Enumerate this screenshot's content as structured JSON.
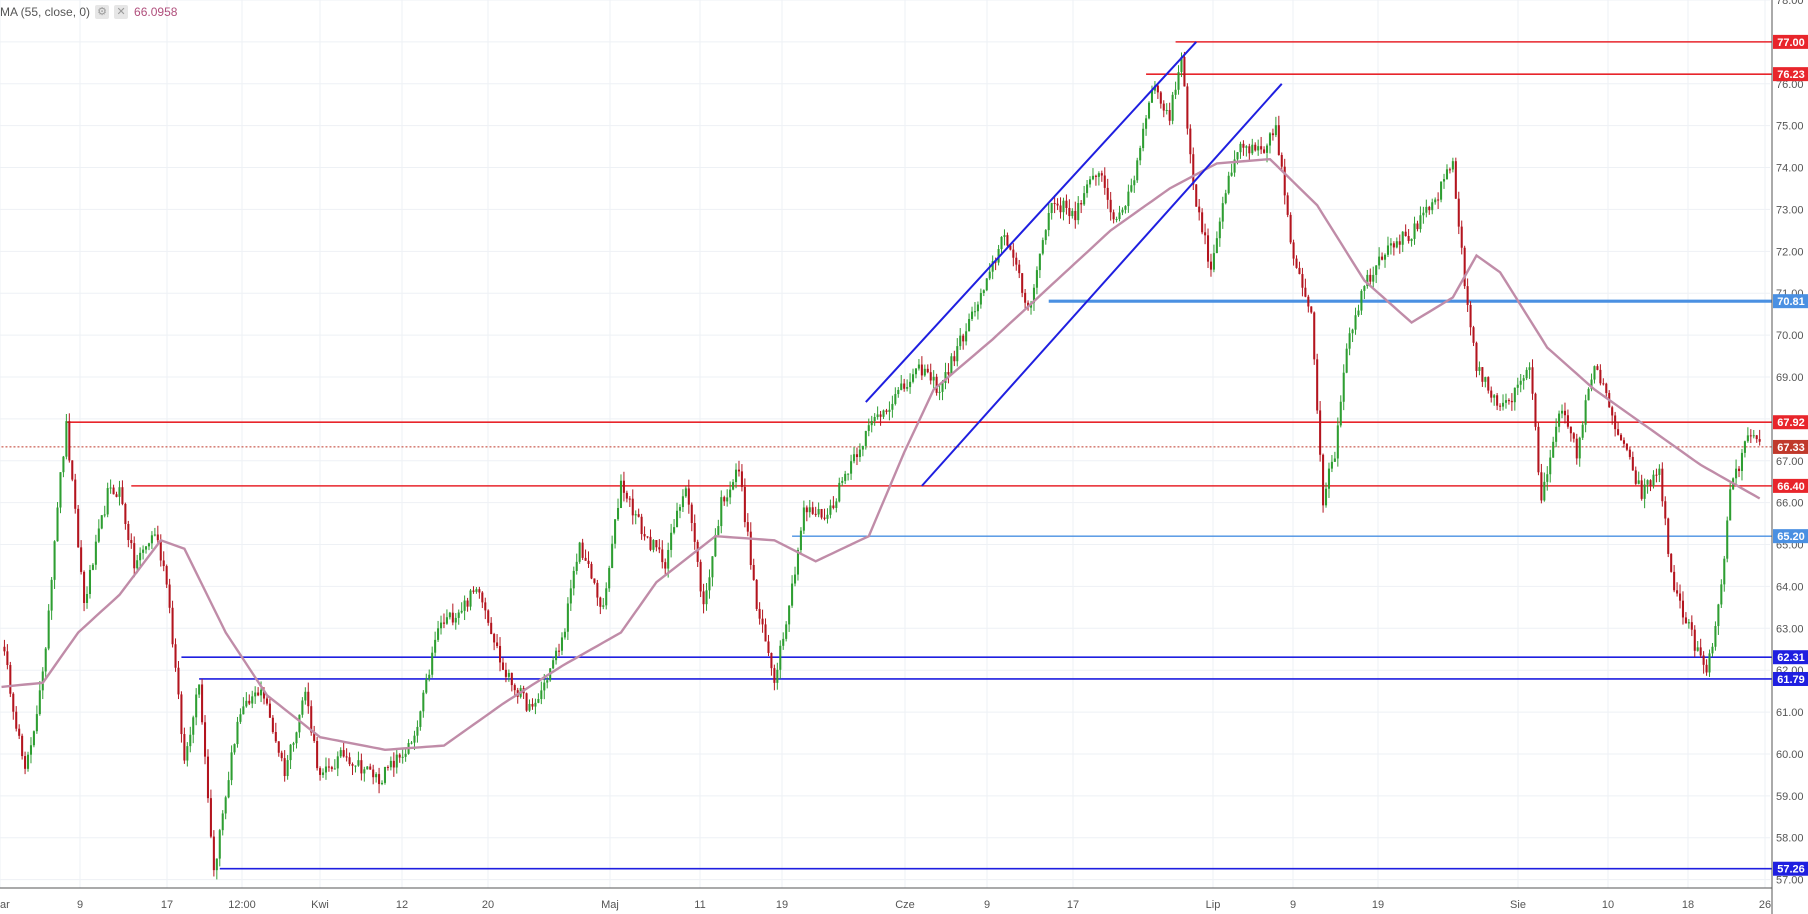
{
  "legend": {
    "label": "MA (55, close, 0)",
    "settings_icon": "gear-icon",
    "close_icon": "close-icon",
    "value": "66.0958"
  },
  "colors": {
    "up": "#2e9e32",
    "down": "#b3141e",
    "ma": "#c08ca8",
    "red_level": "#e8252b",
    "blue_level": "#1f1fe0",
    "light_blue_level": "#4a90e2",
    "price_line": "#c0392b",
    "grid": "#eef1f5",
    "axis_text": "#555555"
  },
  "chart_data": {
    "type": "candlestick",
    "title": "",
    "ylim": [
      56.8,
      78.0
    ],
    "y_ticks": [
      57,
      58,
      59,
      60,
      61,
      62,
      63,
      64,
      65,
      66,
      67,
      68,
      69,
      70,
      71,
      72,
      73,
      74,
      75,
      76,
      77,
      78
    ],
    "y_tick_labels": [
      "57.00",
      "58.00",
      "59.00",
      "60.00",
      "61.00",
      "62.00",
      "63.00",
      "64.00",
      "65.00",
      "66.00",
      "67.00",
      "68.00",
      "69.00",
      "70.00",
      "71.00",
      "72.00",
      "73.00",
      "74.00",
      "75.00",
      "76.00",
      "77.00",
      "78.00"
    ],
    "x_tick_labels": [
      "ar",
      "9",
      "17",
      "12:00",
      "Kwi",
      "12",
      "20",
      "Maj",
      "11",
      "19",
      "Cze",
      "9",
      "17",
      "Lip",
      "9",
      "19",
      "Sie",
      "10",
      "18",
      "26"
    ],
    "series": [
      {
        "name": "price",
        "anchors": [
          [
            0,
            62.7
          ],
          [
            3,
            61.6
          ],
          [
            8,
            59.5
          ],
          [
            14,
            61.8
          ],
          [
            19,
            66.0
          ],
          [
            22,
            67.8
          ],
          [
            28,
            63.6
          ],
          [
            36,
            66.2
          ],
          [
            40,
            66.3
          ],
          [
            45,
            64.5
          ],
          [
            52,
            65.3
          ],
          [
            56,
            64.2
          ],
          [
            62,
            59.8
          ],
          [
            67,
            61.8
          ],
          [
            72,
            57.2
          ],
          [
            80,
            60.8
          ],
          [
            88,
            61.6
          ],
          [
            96,
            59.6
          ],
          [
            103,
            61.5
          ],
          [
            108,
            59.4
          ],
          [
            116,
            60.0
          ],
          [
            128,
            59.4
          ],
          [
            140,
            60.3
          ],
          [
            148,
            63.0
          ],
          [
            156,
            63.5
          ],
          [
            162,
            64.0
          ],
          [
            170,
            62.0
          ],
          [
            180,
            61.0
          ],
          [
            190,
            62.7
          ],
          [
            196,
            65.0
          ],
          [
            204,
            63.4
          ],
          [
            210,
            66.5
          ],
          [
            218,
            65.2
          ],
          [
            225,
            64.6
          ],
          [
            232,
            66.5
          ],
          [
            238,
            63.5
          ],
          [
            244,
            66.0
          ],
          [
            250,
            66.8
          ],
          [
            256,
            63.5
          ],
          [
            262,
            61.8
          ],
          [
            268,
            64.0
          ],
          [
            272,
            65.8
          ],
          [
            280,
            65.7
          ],
          [
            288,
            67.0
          ],
          [
            296,
            68.0
          ],
          [
            304,
            68.6
          ],
          [
            312,
            69.2
          ],
          [
            318,
            68.7
          ],
          [
            326,
            70.0
          ],
          [
            334,
            71.2
          ],
          [
            340,
            72.5
          ],
          [
            348,
            70.6
          ],
          [
            356,
            73.2
          ],
          [
            364,
            72.9
          ],
          [
            372,
            74.0
          ],
          [
            378,
            72.6
          ],
          [
            384,
            73.8
          ],
          [
            390,
            76.0
          ],
          [
            396,
            75.2
          ],
          [
            400,
            76.7
          ],
          [
            404,
            73.5
          ],
          [
            410,
            71.6
          ],
          [
            414,
            73.2
          ],
          [
            420,
            74.5
          ],
          [
            428,
            74.3
          ],
          [
            432,
            75.0
          ],
          [
            438,
            71.7
          ],
          [
            444,
            70.6
          ],
          [
            448,
            66.1
          ],
          [
            452,
            67.2
          ],
          [
            456,
            69.8
          ],
          [
            462,
            71.2
          ],
          [
            470,
            72.2
          ],
          [
            478,
            72.4
          ],
          [
            486,
            73.2
          ],
          [
            492,
            74.1
          ],
          [
            496,
            71.2
          ],
          [
            500,
            69.3
          ],
          [
            506,
            68.4
          ],
          [
            512,
            68.5
          ],
          [
            518,
            69.3
          ],
          [
            522,
            66.0
          ],
          [
            528,
            68.3
          ],
          [
            534,
            67.2
          ],
          [
            540,
            69.4
          ],
          [
            546,
            68.0
          ],
          [
            550,
            67.3
          ],
          [
            556,
            66.2
          ],
          [
            562,
            66.8
          ],
          [
            566,
            64.2
          ],
          [
            572,
            63.0
          ],
          [
            578,
            61.9
          ],
          [
            582,
            63.4
          ],
          [
            586,
            66.2
          ],
          [
            592,
            67.6
          ],
          [
            596,
            67.3
          ]
        ]
      },
      {
        "name": "MA (55, close, 0)",
        "points": [
          [
            0,
            61.6
          ],
          [
            14,
            61.7
          ],
          [
            26,
            62.9
          ],
          [
            40,
            63.8
          ],
          [
            54,
            65.1
          ],
          [
            62,
            64.9
          ],
          [
            76,
            62.9
          ],
          [
            90,
            61.4
          ],
          [
            108,
            60.4
          ],
          [
            130,
            60.1
          ],
          [
            150,
            60.2
          ],
          [
            170,
            61.2
          ],
          [
            190,
            62.1
          ],
          [
            210,
            62.9
          ],
          [
            222,
            64.1
          ],
          [
            242,
            65.2
          ],
          [
            262,
            65.1
          ],
          [
            276,
            64.6
          ],
          [
            294,
            65.2
          ],
          [
            306,
            67.2
          ],
          [
            316,
            68.7
          ],
          [
            336,
            69.9
          ],
          [
            356,
            71.2
          ],
          [
            376,
            72.5
          ],
          [
            396,
            73.5
          ],
          [
            412,
            74.1
          ],
          [
            430,
            74.2
          ],
          [
            446,
            73.1
          ],
          [
            462,
            71.3
          ],
          [
            478,
            70.3
          ],
          [
            492,
            70.9
          ],
          [
            500,
            71.9
          ],
          [
            508,
            71.5
          ],
          [
            524,
            69.7
          ],
          [
            540,
            68.7
          ],
          [
            556,
            67.9
          ],
          [
            576,
            66.9
          ],
          [
            596,
            66.1
          ]
        ]
      }
    ],
    "levels": [
      {
        "value": 77.0,
        "label": "77.00",
        "color": "red",
        "from": 398
      },
      {
        "value": 76.23,
        "label": "76.23",
        "color": "red",
        "from": 388
      },
      {
        "value": 70.81,
        "label": "70.81",
        "color": "blue_light_thick",
        "from": 355
      },
      {
        "value": 67.92,
        "label": "67.92",
        "color": "red",
        "from": 22
      },
      {
        "value": 67.33,
        "label": "67.33",
        "color": "price",
        "from": 0
      },
      {
        "value": 66.4,
        "label": "66.40",
        "color": "red",
        "from": 44
      },
      {
        "value": 65.2,
        "label": "65.20",
        "color": "blue_light",
        "from": 268
      },
      {
        "value": 62.31,
        "label": "62.31",
        "color": "blue",
        "from": 61
      },
      {
        "value": 61.79,
        "label": "61.79",
        "color": "blue",
        "from": 67
      },
      {
        "value": 57.26,
        "label": "57.26",
        "color": "blue",
        "from": 74
      }
    ],
    "trend_channel": [
      {
        "from": [
          293,
          68.4
        ],
        "to": [
          405,
          77.0
        ]
      },
      {
        "from": [
          312,
          66.4
        ],
        "to": [
          434,
          76.0
        ]
      }
    ]
  }
}
